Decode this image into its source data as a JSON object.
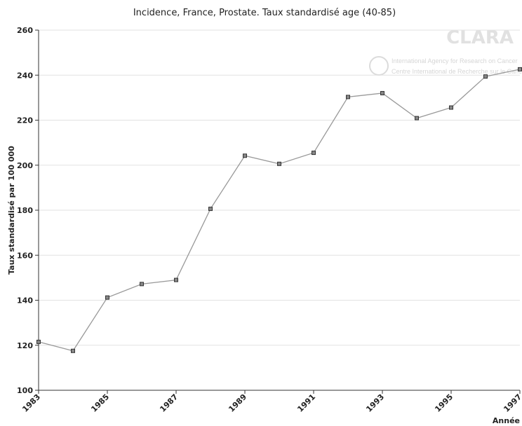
{
  "chart_data": {
    "type": "line",
    "title": "Incidence, France, Prostate. Taux standardisé age (40-85)",
    "x_label": "Année",
    "y_label": "Taux standardisé par 100 000",
    "watermark": {
      "logo": "CLARA",
      "line1": "International Agency for Research on Cancer",
      "line2": "Centre International de Recherche sur le Cancer"
    },
    "x": [
      1983,
      1984,
      1985,
      1986,
      1987,
      1988,
      1989,
      1990,
      1991,
      1992,
      1993,
      1994,
      1995,
      1996,
      1997
    ],
    "series": [
      {
        "name": "Incidence",
        "color": "#999999",
        "values": [
          121.5,
          117.5,
          141.2,
          147.2,
          149,
          180.6,
          204.2,
          200.6,
          205.5,
          230.3,
          232,
          220.9,
          225.6,
          239.4,
          242.6
        ]
      }
    ],
    "xlim": [
      1983,
      1997
    ],
    "xticks": [
      1983,
      1985,
      1987,
      1989,
      1991,
      1993,
      1995,
      1997
    ],
    "ylim": [
      100,
      260
    ],
    "yticks": [
      100,
      120,
      140,
      160,
      180,
      200,
      220,
      240,
      260
    ],
    "grid": true
  }
}
